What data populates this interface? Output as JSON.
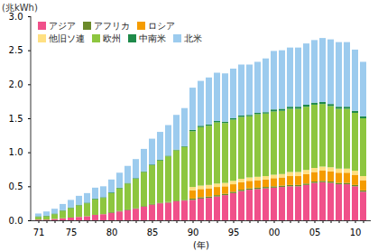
{
  "chart_data": {
    "type": "bar",
    "stacked": true,
    "legend": "top-left",
    "grid": false,
    "x_label": "(年)",
    "y_label": "(兆kWh)",
    "categories": [
      "71",
      null,
      null,
      null,
      "75",
      null,
      null,
      null,
      null,
      "80",
      null,
      null,
      null,
      null,
      "85",
      null,
      null,
      null,
      null,
      "90",
      null,
      null,
      null,
      null,
      "95",
      null,
      null,
      null,
      null,
      "00",
      null,
      null,
      null,
      null,
      "05",
      null,
      null,
      null,
      null,
      "10",
      null
    ],
    "ylim": [
      0,
      3
    ],
    "yticks": [
      {
        "value": 0,
        "label": "0.0"
      },
      {
        "value": 0.5,
        "label": "0.5"
      },
      {
        "value": 1,
        "label": "1.0"
      },
      {
        "value": 1.5,
        "label": "1.5"
      },
      {
        "value": 2,
        "label": "2.0"
      },
      {
        "value": 2.5,
        "label": "2.5"
      },
      {
        "value": 3,
        "label": "3.0"
      }
    ],
    "series": [
      {
        "name": "アジア",
        "color": "#f0508a",
        "values": [
          0.01,
          0.01,
          0.02,
          0.03,
          0.04,
          0.05,
          0.06,
          0.08,
          0.09,
          0.11,
          0.13,
          0.15,
          0.17,
          0.2,
          0.23,
          0.25,
          0.26,
          0.28,
          0.29,
          0.3,
          0.32,
          0.33,
          0.35,
          0.37,
          0.4,
          0.43,
          0.45,
          0.46,
          0.47,
          0.48,
          0.49,
          0.5,
          0.5,
          0.52,
          0.55,
          0.56,
          0.55,
          0.53,
          0.53,
          0.5,
          0.42
        ]
      },
      {
        "name": "アフリカ",
        "color": "#6b8a2a",
        "values": [
          0,
          0,
          0,
          0,
          0,
          0,
          0,
          0,
          0,
          0.01,
          0.01,
          0.01,
          0.01,
          0.01,
          0.01,
          0.01,
          0.01,
          0.01,
          0.01,
          0.02,
          0.02,
          0.02,
          0.02,
          0.02,
          0.02,
          0.02,
          0.02,
          0.02,
          0.02,
          0.02,
          0.02,
          0.02,
          0.02,
          0.02,
          0.02,
          0.02,
          0.02,
          0.02,
          0.02,
          0.02,
          0.02
        ]
      },
      {
        "name": "ロシア",
        "color": "#f59c00",
        "values": [
          0,
          0,
          0,
          0,
          0,
          0,
          0,
          0,
          0,
          0,
          0,
          0,
          0,
          0,
          0,
          0,
          0,
          0,
          0,
          0.12,
          0.12,
          0.12,
          0.12,
          0.11,
          0.11,
          0.11,
          0.11,
          0.11,
          0.11,
          0.12,
          0.12,
          0.13,
          0.13,
          0.14,
          0.14,
          0.15,
          0.15,
          0.15,
          0.15,
          0.15,
          0.15
        ]
      },
      {
        "name": "他旧ソ連",
        "color": "#ffe082",
        "values": [
          0,
          0,
          0,
          0,
          0,
          0,
          0,
          0,
          0,
          0,
          0,
          0,
          0,
          0,
          0,
          0,
          0,
          0,
          0,
          0.05,
          0.05,
          0.05,
          0.05,
          0.05,
          0.05,
          0.05,
          0.05,
          0.05,
          0.05,
          0.05,
          0.05,
          0.06,
          0.06,
          0.06,
          0.06,
          0.06,
          0.06,
          0.06,
          0.06,
          0.06,
          0.06
        ]
      },
      {
        "name": "欧州",
        "color": "#8dc63f",
        "values": [
          0.04,
          0.05,
          0.07,
          0.11,
          0.14,
          0.17,
          0.19,
          0.23,
          0.24,
          0.28,
          0.33,
          0.38,
          0.43,
          0.5,
          0.57,
          0.62,
          0.67,
          0.74,
          0.78,
          0.82,
          0.86,
          0.87,
          0.9,
          0.88,
          0.9,
          0.91,
          0.9,
          0.92,
          0.92,
          0.93,
          0.93,
          0.93,
          0.93,
          0.93,
          0.93,
          0.92,
          0.9,
          0.88,
          0.88,
          0.85,
          0.85
        ]
      },
      {
        "name": "中南米",
        "color": "#1e8a4a",
        "values": [
          0.01,
          0.01,
          0.01,
          0.01,
          0.01,
          0.01,
          0.01,
          0.01,
          0.01,
          0.01,
          0.01,
          0.01,
          0.01,
          0.01,
          0.01,
          0.01,
          0.01,
          0.01,
          0.01,
          0.02,
          0.02,
          0.02,
          0.02,
          0.02,
          0.02,
          0.02,
          0.02,
          0.02,
          0.02,
          0.03,
          0.03,
          0.03,
          0.03,
          0.03,
          0.03,
          0.03,
          0.03,
          0.03,
          0.03,
          0.03,
          0.03
        ]
      },
      {
        "name": "北米",
        "color": "#9ccbee",
        "values": [
          0.04,
          0.06,
          0.07,
          0.09,
          0.11,
          0.13,
          0.14,
          0.16,
          0.16,
          0.19,
          0.22,
          0.25,
          0.28,
          0.33,
          0.38,
          0.41,
          0.45,
          0.51,
          0.56,
          0.62,
          0.66,
          0.69,
          0.71,
          0.71,
          0.73,
          0.75,
          0.74,
          0.75,
          0.79,
          0.86,
          0.86,
          0.87,
          0.87,
          0.9,
          0.92,
          0.94,
          0.95,
          0.95,
          0.95,
          0.9,
          0.8
        ]
      }
    ]
  }
}
